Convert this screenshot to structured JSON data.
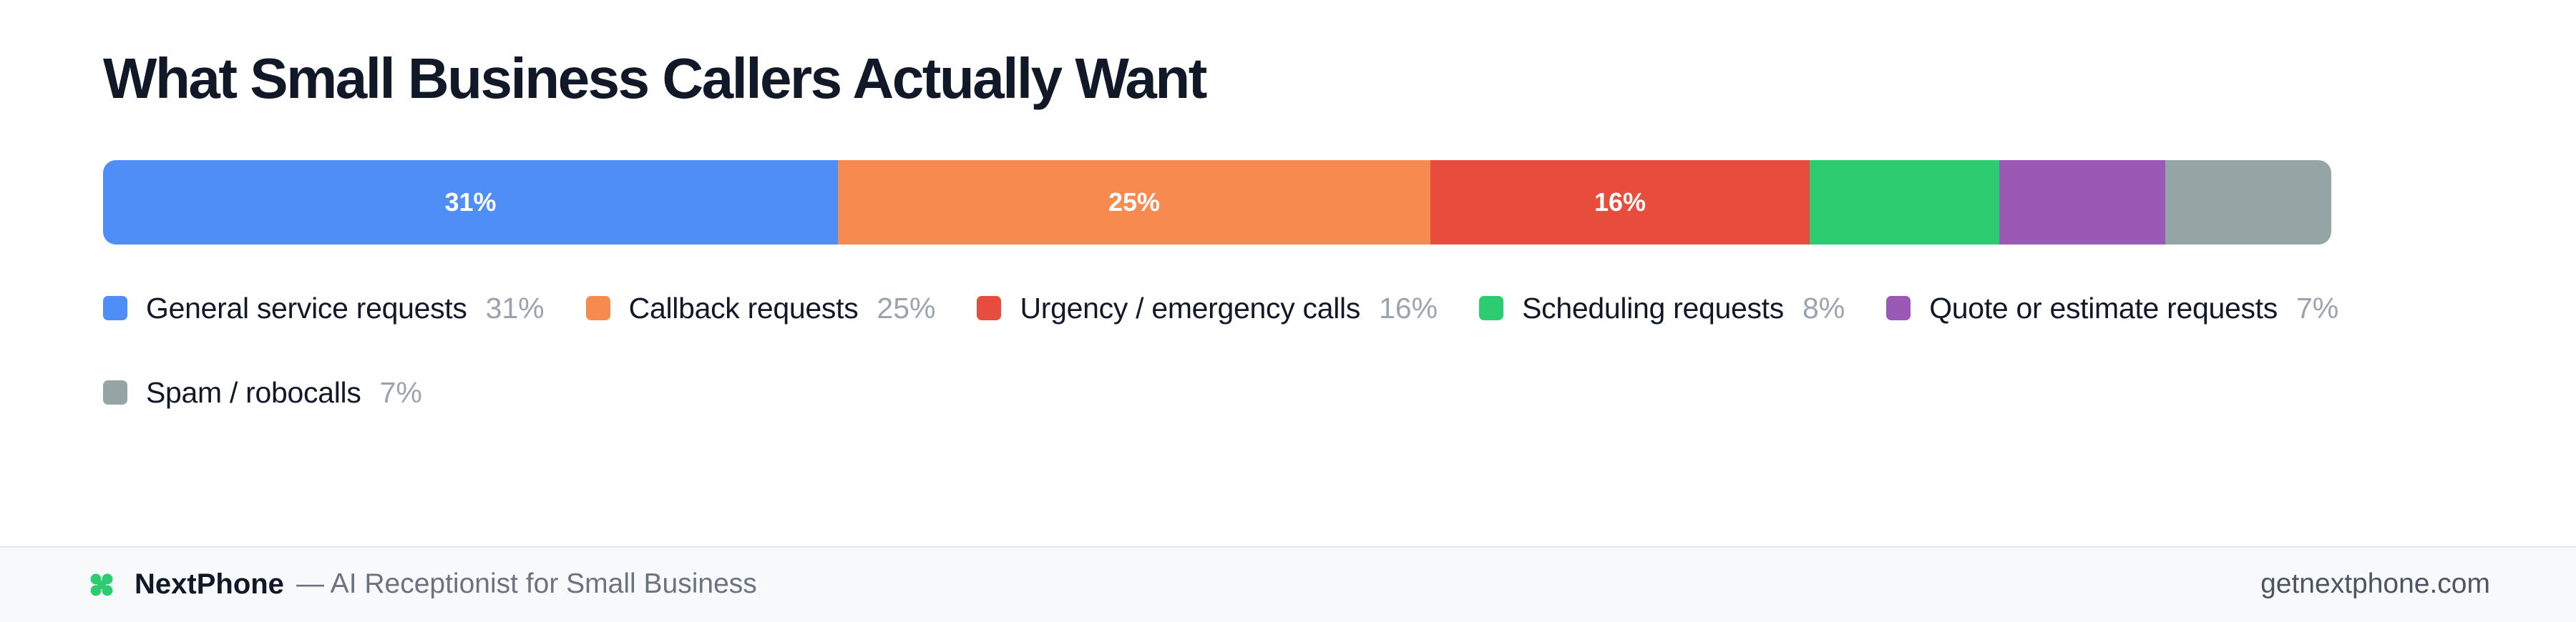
{
  "chart_data": {
    "type": "bar",
    "orientation": "horizontal-stacked-100",
    "title": "What Small Business Callers Actually Want",
    "categories": [
      "General service requests",
      "Callback requests",
      "Urgency / emergency calls",
      "Scheduling requests",
      "Quote or estimate requests",
      "Spam / robocalls"
    ],
    "values": [
      31,
      25,
      16,
      8,
      7,
      7
    ],
    "value_labels": [
      "31%",
      "25%",
      "16%",
      "8%",
      "7%",
      "7%"
    ],
    "bar_labels": [
      "31%",
      "25%",
      "16%",
      "",
      "",
      ""
    ],
    "colors": [
      "#4f8ef7",
      "#f78a4f",
      "#e74c3c",
      "#2ecc71",
      "#9b59b6",
      "#95a5a6"
    ],
    "legend_position": "bottom",
    "grid": false
  },
  "footer": {
    "brand_name": "NextPhone",
    "tagline": "— AI Receptionist for Small Business",
    "url": "getnextphone.com",
    "brand_color": "#2ecc71",
    "icon": "four-petal-logo-icon"
  }
}
